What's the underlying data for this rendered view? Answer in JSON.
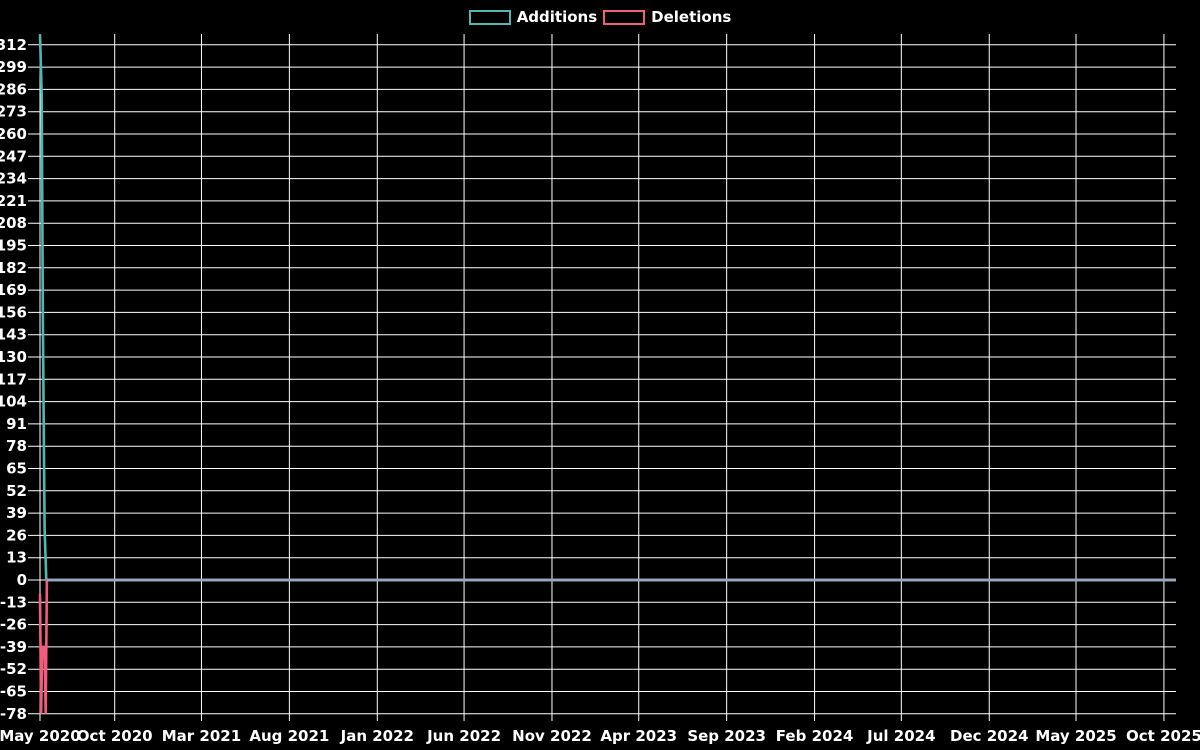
{
  "chart_data": {
    "type": "line",
    "title": "",
    "xlabel": "",
    "ylabel": "",
    "grid": true,
    "legend_position": "top-center",
    "colors": {
      "background": "#000000",
      "grid": "#ffffff",
      "text": "#ffffff"
    },
    "legend": [
      {
        "label": "Additions",
        "color": "#4db8b2"
      },
      {
        "label": "Deletions",
        "color": "#f15d7d"
      }
    ],
    "y_axis": {
      "min": -78,
      "max": 312,
      "tick_step": 13,
      "ylim": [
        -78,
        318
      ],
      "ticks": [
        312,
        299,
        286,
        273,
        260,
        247,
        234,
        221,
        208,
        195,
        182,
        169,
        156,
        143,
        130,
        117,
        104,
        91,
        78,
        65,
        52,
        39,
        26,
        13,
        0,
        -13,
        -26,
        -39,
        -52,
        -65,
        -78
      ]
    },
    "x_axis": {
      "domain_start": "2020-05-24",
      "domain_end": "2025-10-22",
      "ticks": [
        {
          "label": "May 2020",
          "date": "2020-05-24"
        },
        {
          "label": "Oct 2020",
          "date": "2020-10-01"
        },
        {
          "label": "Mar 2021",
          "date": "2021-03-01"
        },
        {
          "label": "Aug 2021",
          "date": "2021-08-01"
        },
        {
          "label": "Jan 2022",
          "date": "2022-01-01"
        },
        {
          "label": "Jun 2022",
          "date": "2022-06-01"
        },
        {
          "label": "Nov 2022",
          "date": "2022-11-01"
        },
        {
          "label": "Apr 2023",
          "date": "2023-04-01"
        },
        {
          "label": "Sep 2023",
          "date": "2023-09-01"
        },
        {
          "label": "Feb 2024",
          "date": "2024-02-01"
        },
        {
          "label": "Jul 2024",
          "date": "2024-07-01"
        },
        {
          "label": "Dec 2024",
          "date": "2024-12-01"
        },
        {
          "label": "May 2025",
          "date": "2025-05-01"
        },
        {
          "label": "Oct 2025",
          "date": "2025-10-01"
        }
      ]
    },
    "series": [
      {
        "name": "Additions",
        "color": "#4db8b2",
        "points": [
          [
            "2020-05-24",
            318
          ],
          [
            "2020-05-27",
            283
          ],
          [
            "2020-05-29",
            150
          ],
          [
            "2020-06-01",
            30
          ],
          [
            "2020-06-04",
            0
          ],
          [
            "2025-10-22",
            0
          ]
        ]
      },
      {
        "name": "Deletions",
        "color": "#f15d7d",
        "points": [
          [
            "2020-05-24",
            -8
          ],
          [
            "2020-05-26",
            -78
          ],
          [
            "2020-05-28",
            -39
          ],
          [
            "2020-06-01",
            -39
          ],
          [
            "2020-06-03",
            -78
          ],
          [
            "2020-06-05",
            0
          ],
          [
            "2025-10-22",
            0
          ]
        ]
      }
    ],
    "baseline": {
      "value": 0,
      "color": "#8fadc2",
      "start": "2020-06-05",
      "end": "2025-10-22"
    }
  }
}
